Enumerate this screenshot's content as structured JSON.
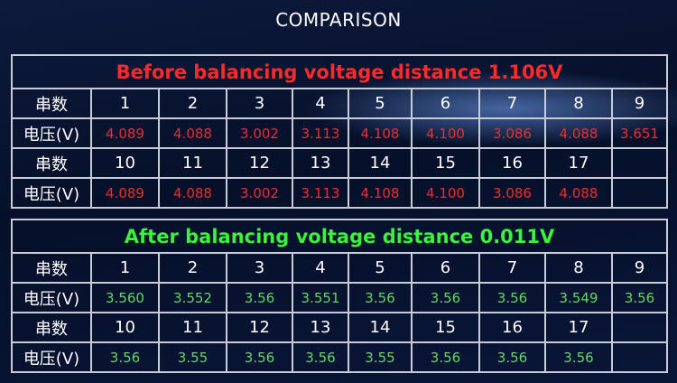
{
  "title": "COMPARISON",
  "tables": [
    {
      "heading": "Before balancing voltage distance 1.106V",
      "rows": [
        [
          "串数",
          "1",
          "2",
          "3",
          "4",
          "5",
          "6",
          "7",
          "8",
          "9"
        ],
        [
          "电压(V)",
          "4.089",
          "4.088",
          "3.002",
          "3.113",
          "4.108",
          "4.100",
          "3.086",
          "4.088",
          "3.651"
        ],
        [
          "串数",
          "10",
          "11",
          "12",
          "13",
          "14",
          "15",
          "16",
          "17"
        ],
        [
          "电压(V)",
          "4.089",
          "4.088",
          "3.002",
          "3.113",
          "4.108",
          "4.100",
          "3.086",
          "4.088"
        ]
      ]
    },
    {
      "heading": "After balancing voltage distance 0.011V",
      "rows": [
        [
          "串数",
          "1",
          "2",
          "3",
          "4",
          "5",
          "6",
          "7",
          "8",
          "9"
        ],
        [
          "电压(V)",
          "3.560",
          "3.552",
          "3.56",
          "3.551",
          "3.56",
          "3.56",
          "3.56",
          "3.549",
          "3.56"
        ],
        [
          "串数",
          "10",
          "11",
          "12",
          "13",
          "14",
          "15",
          "16",
          "17"
        ],
        [
          "电压(V)",
          "3.56",
          "3.55",
          "3.56",
          "3.56",
          "3.55",
          "3.56",
          "3.56",
          "3.56"
        ]
      ]
    }
  ]
}
